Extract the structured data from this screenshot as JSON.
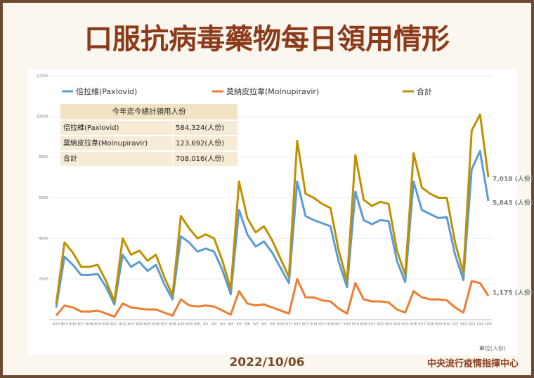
{
  "chart_data": {
    "type": "line",
    "title": "口服抗病毒藥物每日領用情形",
    "categories": [
      "8/14",
      "8/15",
      "8/16",
      "8/17",
      "8/18",
      "8/19",
      "8/20",
      "8/21",
      "8/22",
      "8/23",
      "8/24",
      "8/25",
      "8/26",
      "8/27",
      "8/28",
      "8/29",
      "8/30",
      "8/31",
      "9/1",
      "9/2",
      "9/3",
      "9/4",
      "9/5",
      "9/6",
      "9/7",
      "9/8",
      "9/9",
      "9/10",
      "9/11",
      "9/12",
      "9/13",
      "9/14",
      "9/15",
      "9/16",
      "9/17",
      "9/18",
      "9/19",
      "9/20",
      "9/21",
      "9/22",
      "9/23",
      "9/24",
      "9/25",
      "9/26",
      "9/27",
      "9/28",
      "9/29",
      "9/30",
      "10/1",
      "10/2",
      "10/3",
      "10/4",
      "10/5"
    ],
    "series": [
      {
        "name": "倍拉維(Paxlovid)",
        "color": "#5b9bd5",
        "values": [
          600,
          3100,
          2700,
          2200,
          2200,
          2250,
          1600,
          750,
          3200,
          2600,
          2850,
          2400,
          2700,
          1750,
          1000,
          4100,
          3800,
          3350,
          3500,
          3350,
          2450,
          1250,
          5400,
          4200,
          3600,
          3850,
          3300,
          2550,
          1800,
          6800,
          5100,
          4900,
          4750,
          4600,
          2850,
          1600,
          6300,
          4900,
          4700,
          4900,
          4850,
          2900,
          1850,
          6800,
          5400,
          5200,
          5000,
          5050,
          3200,
          1950,
          7400,
          8300,
          5843
        ],
        "value_labels": [
          null,
          null,
          null,
          null,
          null,
          null,
          null,
          null,
          null,
          null,
          null,
          null,
          null,
          null,
          null,
          null,
          null,
          null,
          null,
          null,
          null,
          null,
          null,
          null,
          null,
          null,
          null,
          null,
          null,
          null,
          null,
          null,
          null,
          null,
          null,
          null,
          null,
          null,
          null,
          null,
          null,
          null,
          null,
          null,
          null,
          null,
          null,
          null,
          null,
          null,
          null,
          null,
          "5,843 (人份)"
        ]
      },
      {
        "name": "莫納皮拉韋(Molnupiravir)",
        "color": "#ed7d31",
        "values": [
          200,
          700,
          600,
          400,
          400,
          450,
          300,
          150,
          800,
          600,
          550,
          500,
          500,
          350,
          200,
          1000,
          700,
          650,
          700,
          650,
          450,
          250,
          1400,
          800,
          700,
          750,
          600,
          450,
          300,
          2000,
          1100,
          1100,
          950,
          900,
          550,
          300,
          1800,
          1000,
          900,
          900,
          850,
          500,
          350,
          1400,
          1100,
          1000,
          1000,
          950,
          600,
          350,
          1900,
          1800,
          1175
        ],
        "value_labels": [
          null,
          null,
          null,
          null,
          null,
          null,
          null,
          null,
          null,
          null,
          null,
          null,
          null,
          null,
          null,
          null,
          null,
          null,
          null,
          null,
          null,
          null,
          null,
          null,
          null,
          null,
          null,
          null,
          null,
          null,
          null,
          null,
          null,
          null,
          null,
          null,
          null,
          null,
          null,
          null,
          null,
          null,
          null,
          null,
          null,
          null,
          null,
          null,
          null,
          null,
          null,
          null,
          "1,175 (人份)"
        ]
      },
      {
        "name": "合計",
        "color": "#bf9000",
        "values": [
          800,
          3800,
          3300,
          2600,
          2600,
          2700,
          1900,
          900,
          4000,
          3200,
          3400,
          2900,
          3200,
          2100,
          1200,
          5100,
          4500,
          4000,
          4200,
          4000,
          2900,
          1500,
          6800,
          5000,
          4300,
          4600,
          3900,
          3000,
          2100,
          8800,
          6200,
          6000,
          5700,
          5500,
          3400,
          1900,
          8100,
          5900,
          5600,
          5800,
          5700,
          3400,
          2200,
          8200,
          6500,
          6200,
          6000,
          6000,
          3800,
          2300,
          9300,
          10100,
          7018
        ],
        "value_labels": [
          null,
          null,
          null,
          null,
          null,
          null,
          null,
          null,
          null,
          null,
          null,
          null,
          null,
          null,
          null,
          null,
          null,
          null,
          null,
          null,
          null,
          null,
          null,
          null,
          null,
          null,
          null,
          null,
          null,
          null,
          null,
          null,
          null,
          null,
          null,
          null,
          null,
          null,
          null,
          null,
          null,
          null,
          null,
          null,
          null,
          null,
          null,
          null,
          null,
          null,
          null,
          null,
          "7,018 (人份)"
        ]
      }
    ],
    "ylim": [
      0,
      12000
    ],
    "yticks": [
      2000,
      4000,
      6000,
      8000,
      10000,
      12000
    ],
    "summary": {
      "title": "今年迄今總計領用人份",
      "rows": [
        [
          "倍拉維(Paxlovid)",
          "584,324(人份)"
        ],
        [
          "莫納皮拉韋(Molnupiravir)",
          "123,692(人份)"
        ],
        [
          "合計",
          "708,016(人份)"
        ]
      ]
    },
    "unit": "單位(人份)",
    "date": "2022/10/06",
    "source": "中央流行疫情指揮中心"
  }
}
